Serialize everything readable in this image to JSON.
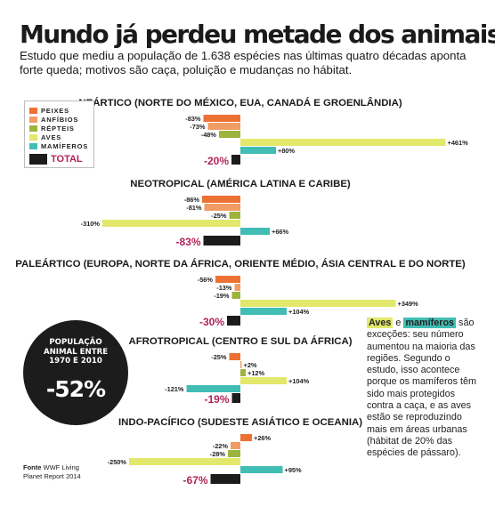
{
  "title": "Mundo já perdeu metade dos animais",
  "subtitle": "Estudo que mediu a população de 1.638 espécies nas últimas quatro décadas aponta forte queda; motivos são caça, poluição e mudanças no hábitat.",
  "legend": {
    "items": [
      {
        "label": "PEIXES",
        "color": "#ec7135"
      },
      {
        "label": "ANFÍBIOS",
        "color": "#f09c64"
      },
      {
        "label": "RÉPTEIS",
        "color": "#9cb43c"
      },
      {
        "label": "AVES",
        "color": "#e2e86b"
      },
      {
        "label": "MAMÍFEROS",
        "color": "#42bdb4"
      }
    ],
    "total": {
      "label": "TOTAL",
      "color": "#1c1c1c"
    }
  },
  "badge": {
    "text": "POPULAÇÃO ANIMAL ENTRE 1970 E 2010",
    "value": "-52%"
  },
  "source": {
    "bold": "Fonte",
    "rest": "WWF Living Planet Report 2014"
  },
  "note": {
    "aves": "Aves",
    "e": "e",
    "mamiferos": "mamíferos",
    "rest": "são exceções: seu número aumentou na maioria das regiões. Segundo o estudo, isso acontece porque os mamíferos têm sido mais protegidos contra a caça, e as aves estão se reproduzindo mais em áreas urbanas (hábitat de 20% das espécies de pássaro)."
  },
  "chart_data": {
    "type": "bar",
    "orientation": "horizontal",
    "categories": [
      "PEIXES",
      "ANFÍBIOS",
      "RÉPTEIS",
      "AVES",
      "MAMÍFEROS",
      "TOTAL"
    ],
    "colors": {
      "PEIXES": "#ec7135",
      "ANFÍBIOS": "#f09c64",
      "RÉPTEIS": "#9cb43c",
      "AVES": "#e2e86b",
      "MAMÍFEROS": "#42bdb4",
      "TOTAL": "#1c1c1c"
    },
    "unit": "%",
    "total_label_color": "#b0245a",
    "regions": [
      {
        "name": "NEÁRTICO (NORTE DO MÉXICO, EUA, CANADÁ E GROENLÂNDIA)",
        "values": [
          -83,
          -73,
          -48,
          461,
          80,
          -20
        ],
        "labels": [
          "-83%",
          "-73%",
          "-48%",
          "+461%",
          "+80%",
          "-20%"
        ]
      },
      {
        "name": "NEOTROPICAL (AMÉRICA LATINA E CARIBE)",
        "values": [
          -86,
          -81,
          -25,
          -310,
          66,
          -83
        ],
        "labels": [
          "-86%",
          "-81%",
          "-25%",
          "-310%",
          "+66%",
          "-83%"
        ]
      },
      {
        "name": "PALEÁRTICO (EUROPA, NORTE DA ÁFRICA, ORIENTE MÉDIO, ÁSIA CENTRAL E DO NORTE)",
        "values": [
          -56,
          -13,
          -19,
          349,
          104,
          -30
        ],
        "labels": [
          "-56%",
          "-13%",
          "-19%",
          "+349%",
          "+104%",
          "-30%"
        ]
      },
      {
        "name": "AFROTROPICAL (CENTRO E SUL DA ÁFRICA)",
        "values": [
          -25,
          2,
          12,
          104,
          -121,
          -19
        ],
        "labels": [
          "-25%",
          "+2%",
          "+12%",
          "+104%",
          "-121%",
          "-19%"
        ]
      },
      {
        "name": "INDO-PACÍFICO (SUDESTE ASIÁTICO E OCEANIA)",
        "values": [
          26,
          -22,
          -28,
          -250,
          95,
          -67
        ],
        "labels": [
          "+26%",
          "-22%",
          "-28%",
          "-250%",
          "+95%",
          "-67%"
        ]
      }
    ]
  }
}
